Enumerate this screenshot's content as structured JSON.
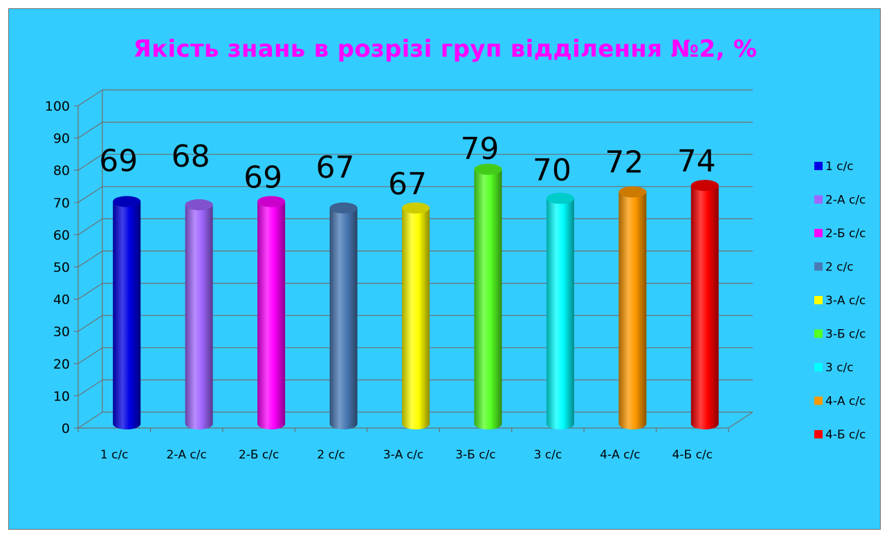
{
  "chart_data": {
    "type": "bar",
    "title": "Якість знань в розрізі груп відділення №2, %",
    "categories": [
      "1 с/с",
      "2-А с/с",
      "2-Б с/с",
      "2 с/с",
      "3-А с/с",
      "3-Б с/с",
      "3 с/с",
      "4-А с/с",
      "4-Б с/с"
    ],
    "values": [
      69,
      68,
      69,
      67,
      67,
      79,
      70,
      72,
      74
    ],
    "colors": [
      "#0000e6",
      "#a066ff",
      "#ff00ff",
      "#4a7ab5",
      "#ffff00",
      "#55ff22",
      "#00ffff",
      "#ff9900",
      "#ff0000"
    ],
    "ylim": [
      0,
      100
    ],
    "yticks": [
      0,
      10,
      20,
      30,
      40,
      50,
      60,
      70,
      80,
      90,
      100
    ],
    "legend_position": "right",
    "grid": true,
    "style": "3d-cylinder"
  }
}
